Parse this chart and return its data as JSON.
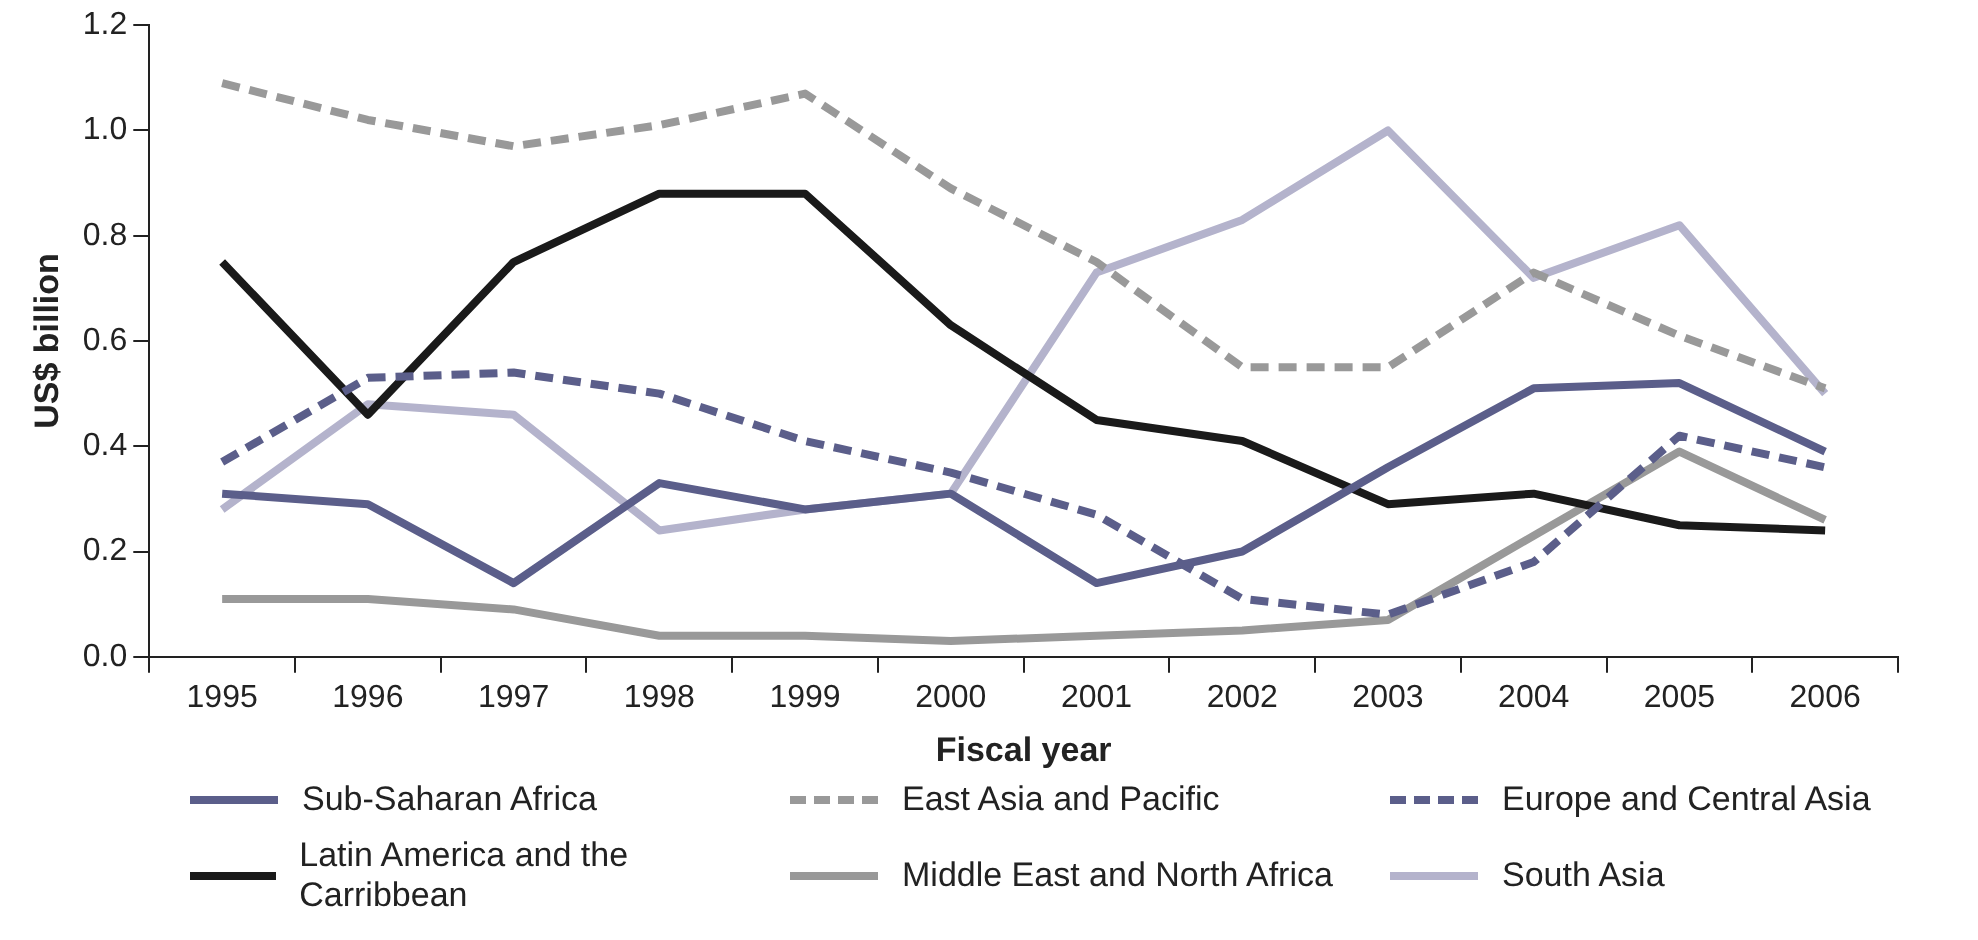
{
  "chart_data": {
    "type": "line",
    "xlabel": "Fiscal year",
    "ylabel": "US$ billion",
    "categories": [
      "1995",
      "1996",
      "1997",
      "1998",
      "1999",
      "2000",
      "2001",
      "2002",
      "2003",
      "2004",
      "2005",
      "2006"
    ],
    "ylim": [
      0,
      1.2
    ],
    "yticks": [
      {
        "value": 0,
        "label": "0.0"
      },
      {
        "value": 0.2,
        "label": "0.2"
      },
      {
        "value": 0.4,
        "label": "0.4"
      },
      {
        "value": 0.6,
        "label": "0.6"
      },
      {
        "value": 0.8,
        "label": "0.8"
      },
      {
        "value": 1,
        "label": "1.0"
      },
      {
        "value": 1.2,
        "label": "1.2"
      }
    ],
    "grid": false,
    "legend": "bottom",
    "marker": "none",
    "series": [
      {
        "name": "Sub-Saharan Africa",
        "color": "#5b5e8a",
        "line_style": "solid",
        "values": [
          0.31,
          0.29,
          0.14,
          0.33,
          0.28,
          0.31,
          0.14,
          0.2,
          0.36,
          0.51,
          0.52,
          0.39
        ]
      },
      {
        "name": "East Asia and Pacific",
        "color": "#999999",
        "line_style": "dashed",
        "values": [
          1.09,
          1.02,
          0.97,
          1.01,
          1.07,
          0.89,
          0.75,
          0.55,
          0.55,
          0.73,
          0.61,
          0.51
        ]
      },
      {
        "name": "Europe and Central Asia",
        "color": "#5b5e8a",
        "line_style": "dashed",
        "values": [
          0.37,
          0.53,
          0.54,
          0.5,
          0.41,
          0.35,
          0.27,
          0.11,
          0.08,
          0.18,
          0.42,
          0.36
        ]
      },
      {
        "name": "Latin America and the Carribbean",
        "color": "#1a1a1a",
        "line_style": "solid",
        "values": [
          0.75,
          0.46,
          0.75,
          0.88,
          0.88,
          0.63,
          0.45,
          0.41,
          0.29,
          0.31,
          0.25,
          0.24
        ]
      },
      {
        "name": "Middle East and North Africa",
        "color": "#999999",
        "line_style": "solid",
        "values": [
          0.11,
          0.11,
          0.09,
          0.04,
          0.04,
          0.03,
          0.04,
          0.05,
          0.07,
          0.23,
          0.39,
          0.26
        ]
      },
      {
        "name": "South Asia",
        "color": "#b4b3cc",
        "line_style": "solid",
        "values": [
          0.28,
          0.48,
          0.46,
          0.24,
          0.28,
          0.31,
          0.73,
          0.83,
          1.0,
          0.72,
          0.82,
          0.5
        ]
      }
    ]
  }
}
